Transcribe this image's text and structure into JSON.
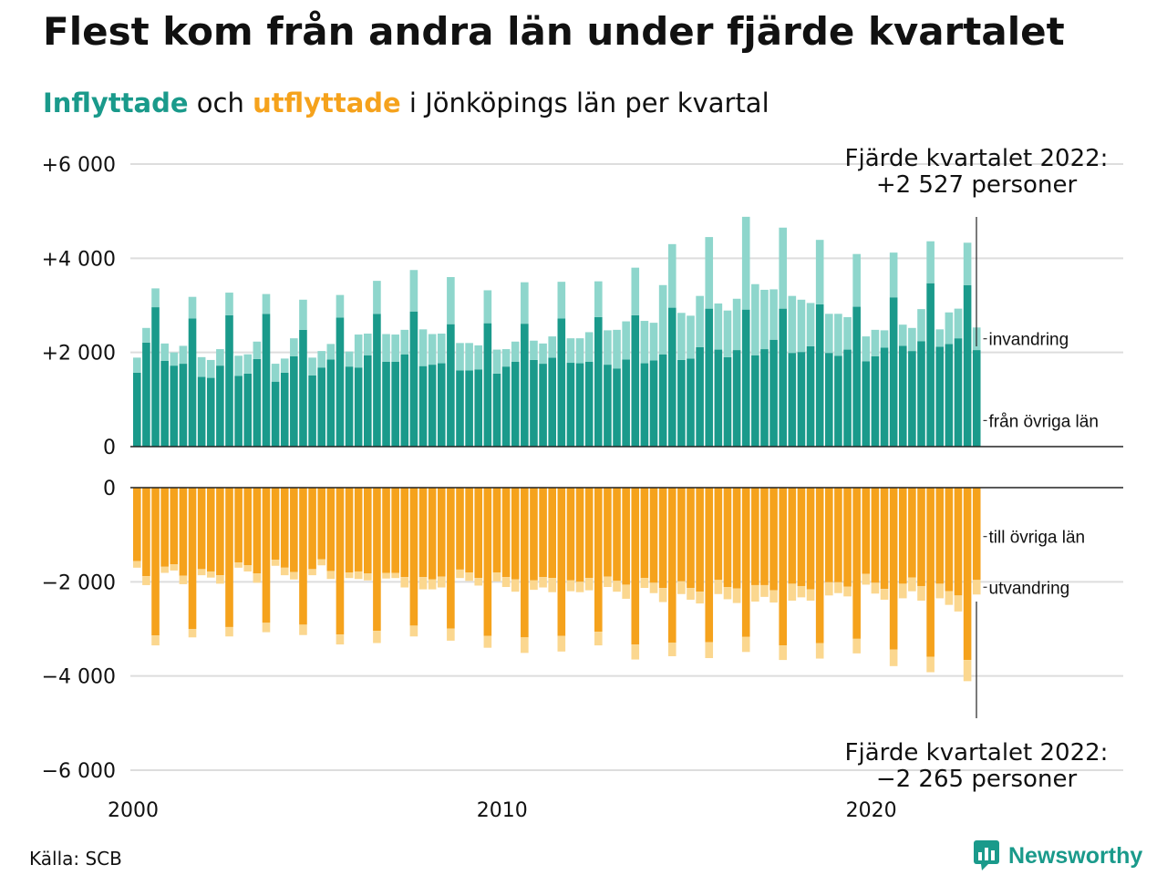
{
  "title": "Flest kom från andra län under fjärde kvartalet",
  "subtitle": {
    "part1": "Inflyttade",
    "part2": " och ",
    "part3": "utflyttade",
    "part4": " i Jönköpings län per kvartal"
  },
  "source": "Källa: SCB",
  "logo_text": "Newsworthy",
  "colors": {
    "in_domestic": "#1a9a8b",
    "in_immigration": "#8ed6cc",
    "out_domestic": "#f5a21c",
    "out_emigration": "#fbd78f",
    "grid": "#dddddd"
  },
  "chart_data": {
    "type": "bar",
    "subtype": "stacked, mirrored",
    "start_year": 2000,
    "quarters_per_year": 4,
    "x_ticks": [
      "2000",
      "2010",
      "2020"
    ],
    "top_panel": {
      "ylim": [
        0,
        6000
      ],
      "tick_labels": [
        "+6 000",
        "+4 000",
        "+2 000",
        "0"
      ],
      "tick_values": [
        6000,
        4000,
        2000,
        0
      ],
      "series": [
        {
          "name": "från övriga län",
          "values": [
            1570,
            2210,
            2960,
            1820,
            1720,
            1760,
            2720,
            1480,
            1460,
            1720,
            2790,
            1500,
            1550,
            1860,
            2820,
            1380,
            1570,
            1920,
            2480,
            1510,
            1680,
            1850,
            2740,
            1700,
            1680,
            1940,
            2820,
            1800,
            1800,
            1960,
            2870,
            1710,
            1740,
            1770,
            2600,
            1620,
            1620,
            1640,
            2620,
            1550,
            1700,
            1800,
            2610,
            1840,
            1760,
            1890,
            2720,
            1780,
            1770,
            1800,
            2750,
            1740,
            1660,
            1850,
            2790,
            1770,
            1830,
            1960,
            2950,
            1840,
            1870,
            2110,
            2930,
            2060,
            1900,
            2050,
            2910,
            1940,
            2070,
            2270,
            2930,
            1990,
            2010,
            2130,
            3020,
            1990,
            1930,
            2060,
            2970,
            1810,
            1920,
            2100,
            3170,
            2140,
            2030,
            2240,
            3470,
            2120,
            2180,
            2300,
            3430,
            2050
          ]
        },
        {
          "name": "invandring",
          "values": [
            320,
            310,
            400,
            370,
            280,
            380,
            460,
            420,
            380,
            350,
            480,
            430,
            410,
            370,
            420,
            380,
            300,
            380,
            640,
            380,
            350,
            330,
            480,
            320,
            700,
            460,
            700,
            590,
            580,
            520,
            880,
            780,
            650,
            630,
            1000,
            580,
            580,
            510,
            700,
            510,
            370,
            430,
            880,
            410,
            430,
            450,
            780,
            520,
            530,
            630,
            760,
            730,
            820,
            810,
            1010,
            900,
            800,
            1470,
            1350,
            1000,
            910,
            1090,
            1520,
            980,
            990,
            1090,
            1970,
            1510,
            1260,
            1070,
            1720,
            1210,
            1110,
            920,
            1370,
            830,
            890,
            690,
            1120,
            530,
            560,
            370,
            950,
            450,
            490,
            680,
            890,
            370,
            670,
            630,
            900,
            480
          ]
        }
      ]
    },
    "bottom_panel": {
      "ylim": [
        -6000,
        0
      ],
      "tick_labels": [
        "0",
        "−2 000",
        "−4 000",
        "−6 000"
      ],
      "tick_values": [
        0,
        -2000,
        -4000,
        -6000
      ],
      "series": [
        {
          "name": "till övriga län",
          "values": [
            -1560,
            -1880,
            -3140,
            -1680,
            -1630,
            -1870,
            -3000,
            -1730,
            -1780,
            -1860,
            -2960,
            -1590,
            -1650,
            -1820,
            -2870,
            -1530,
            -1700,
            -1790,
            -2910,
            -1730,
            -1520,
            -1770,
            -3120,
            -1800,
            -1780,
            -1820,
            -3040,
            -1810,
            -1810,
            -1900,
            -2930,
            -1900,
            -1950,
            -1890,
            -2990,
            -1740,
            -1800,
            -1920,
            -3150,
            -1800,
            -1900,
            -1950,
            -3180,
            -1970,
            -1900,
            -1920,
            -3150,
            -1970,
            -2000,
            -1920,
            -3060,
            -1890,
            -1980,
            -2060,
            -3330,
            -1920,
            -2020,
            -2130,
            -3290,
            -1990,
            -2130,
            -2210,
            -3280,
            -1960,
            -2110,
            -2140,
            -3170,
            -2070,
            -2070,
            -2180,
            -3350,
            -2040,
            -2090,
            -2160,
            -3300,
            -2010,
            -2010,
            -2100,
            -3210,
            -1830,
            -2020,
            -2150,
            -3440,
            -2040,
            -1910,
            -2090,
            -3590,
            -2040,
            -2200,
            -2290,
            -3660,
            -1960
          ]
        },
        {
          "name": "utvandring",
          "values": [
            -140,
            -190,
            -210,
            -130,
            -130,
            -180,
            -180,
            -130,
            -130,
            -180,
            -200,
            -110,
            -130,
            -200,
            -200,
            -130,
            -160,
            -160,
            -220,
            -130,
            -130,
            -170,
            -210,
            -120,
            -160,
            -150,
            -260,
            -120,
            -110,
            -220,
            -230,
            -260,
            -210,
            -230,
            -260,
            -180,
            -180,
            -160,
            -250,
            -190,
            -210,
            -260,
            -330,
            -200,
            -220,
            -300,
            -330,
            -230,
            -220,
            -260,
            -290,
            -220,
            -230,
            -300,
            -320,
            -210,
            -220,
            -300,
            -290,
            -270,
            -250,
            -250,
            -340,
            -300,
            -260,
            -310,
            -320,
            -350,
            -250,
            -260,
            -310,
            -360,
            -240,
            -240,
            -330,
            -280,
            -230,
            -210,
            -310,
            -230,
            -230,
            -230,
            -350,
            -310,
            -290,
            -310,
            -330,
            -310,
            -290,
            -340,
            -450,
            -310
          ]
        }
      ]
    },
    "annotations": [
      {
        "line1": "Fjärde kvartalet 2022:",
        "line2": "+2 527 personer"
      },
      {
        "line1": "Fjärde kvartalet 2022:",
        "line2": "−2 265 personer"
      }
    ]
  }
}
